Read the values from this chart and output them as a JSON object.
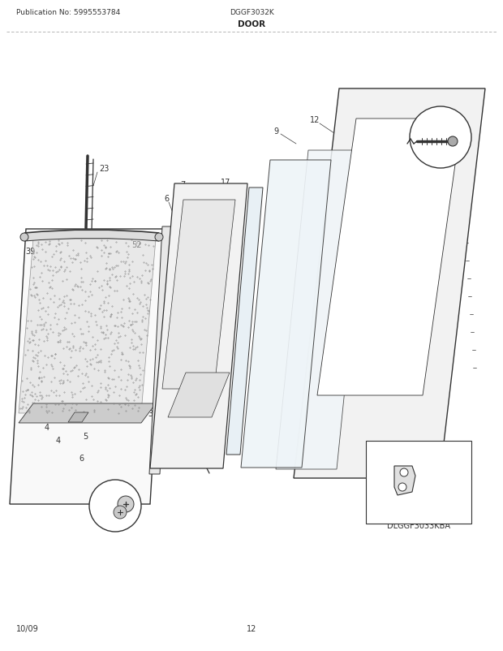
{
  "title_left": "Publication No: 5995553784",
  "title_center": "DGGF3032K",
  "title_section": "DOOR",
  "footer_left": "10/09",
  "footer_center": "12",
  "DLGGF3033KBA": "DLGGF3033KBA",
  "bg_color": "#ffffff",
  "line_color": "#333333",
  "text_color": "#333333"
}
